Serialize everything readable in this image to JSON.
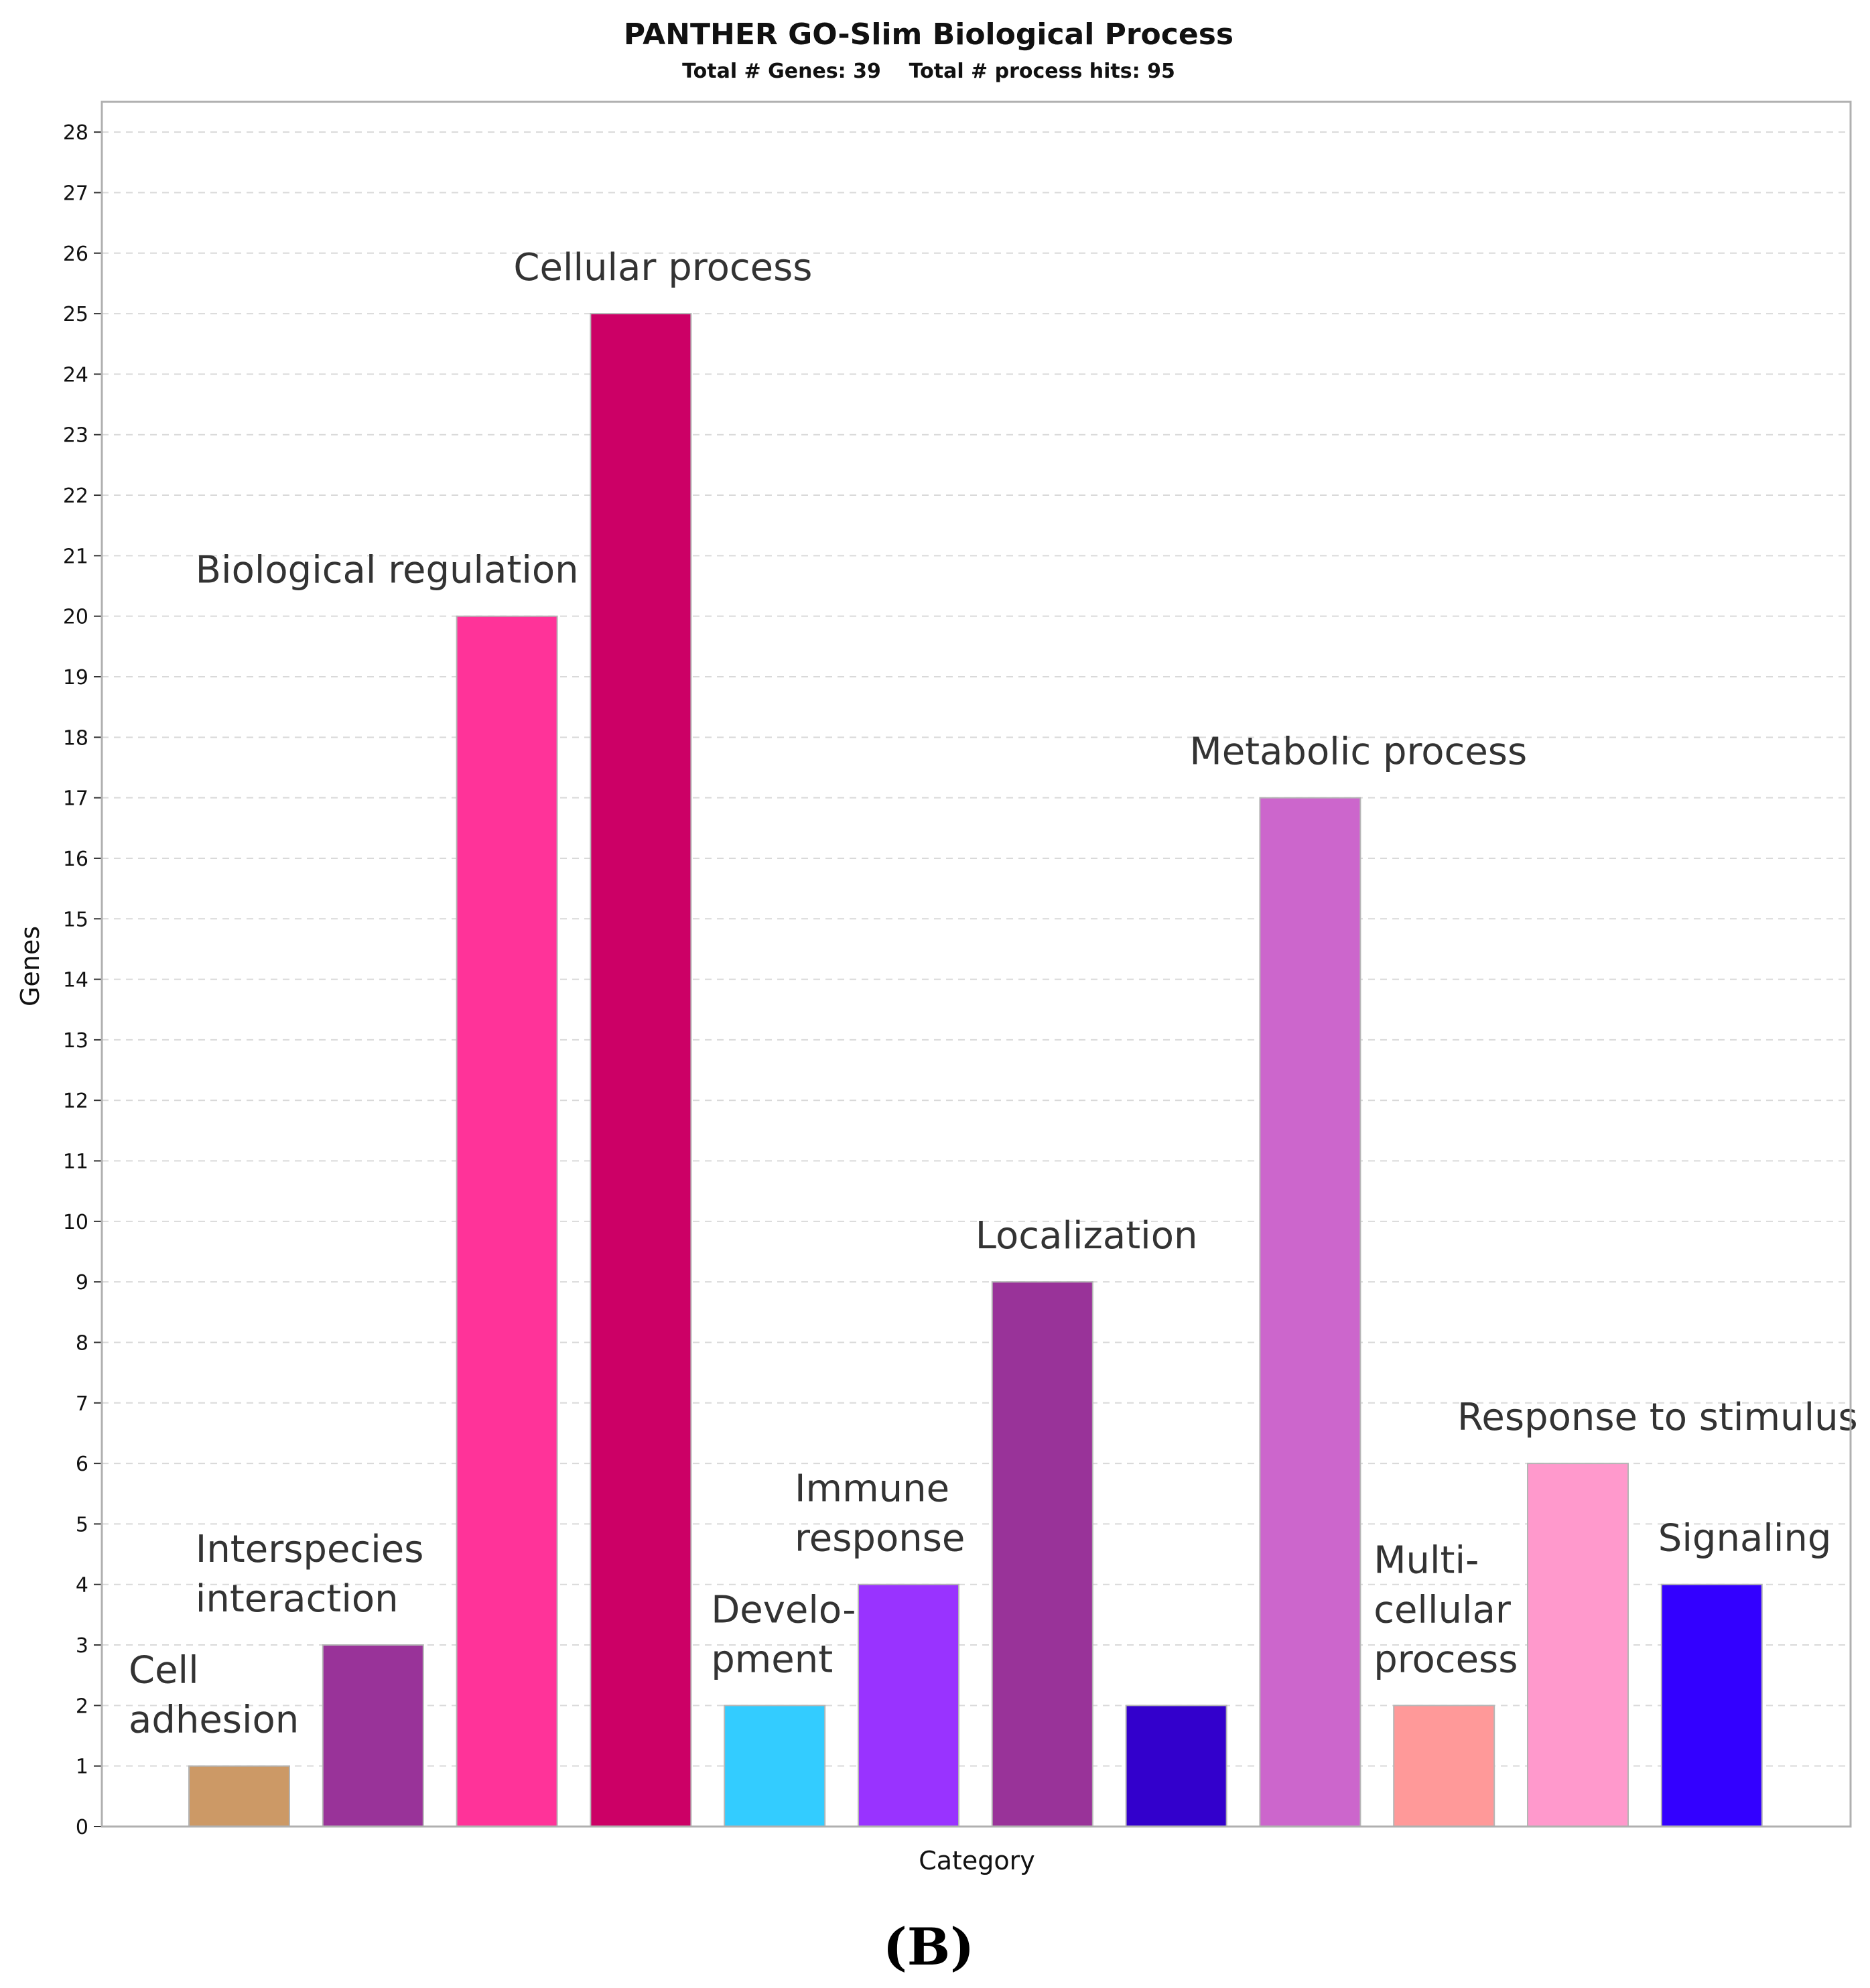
{
  "chart_data": {
    "type": "bar",
    "title": "PANTHER GO-Slim Biological Process",
    "subtitle": "Total # Genes: 39    Total # process hits: 95",
    "xlabel": "Category",
    "ylabel": "Genes",
    "ylim": [
      0,
      28.5
    ],
    "yticks": [
      0,
      1,
      2,
      3,
      4,
      5,
      6,
      7,
      8,
      9,
      10,
      11,
      12,
      13,
      14,
      15,
      16,
      17,
      18,
      19,
      20,
      21,
      22,
      23,
      24,
      25,
      26,
      27,
      28
    ],
    "grid": true,
    "categories": [
      "Cell adhesion",
      "Interspecies interaction",
      "Biological regulation",
      "Cellular process",
      "Development",
      "Immune response",
      "Localization",
      "",
      "Metabolic process",
      "Multi-cellular process",
      "Response to stimulus",
      "Signaling"
    ],
    "values": [
      1,
      3,
      20,
      25,
      2,
      4,
      9,
      2,
      17,
      2,
      6,
      4
    ],
    "colors": [
      "#cc9966",
      "#993399",
      "#ff3399",
      "#cc0066",
      "#33ccff",
      "#9933ff",
      "#993399",
      "#3300cc",
      "#cc66cc",
      "#ff9999",
      "#ff99cc",
      "#3300ff"
    ],
    "annotations": [
      {
        "lines": [
          "Cell",
          "adhesion"
        ]
      },
      {
        "lines": [
          "Interspecies",
          "interaction"
        ]
      },
      {
        "lines": [
          "Biological regulation"
        ]
      },
      {
        "lines": [
          "Cellular process"
        ]
      },
      {
        "lines": [
          "Develo-",
          "pment"
        ]
      },
      {
        "lines": [
          "Immune",
          "response"
        ]
      },
      {
        "lines": [
          "Localization"
        ]
      },
      {
        "lines": []
      },
      {
        "lines": [
          "Metabolic process"
        ]
      },
      {
        "lines": [
          "Multi-",
          "cellular",
          "process"
        ]
      },
      {
        "lines": [
          "Response to stimulus"
        ]
      },
      {
        "lines": [
          "Signaling"
        ]
      }
    ]
  },
  "panel_label": "(B)"
}
